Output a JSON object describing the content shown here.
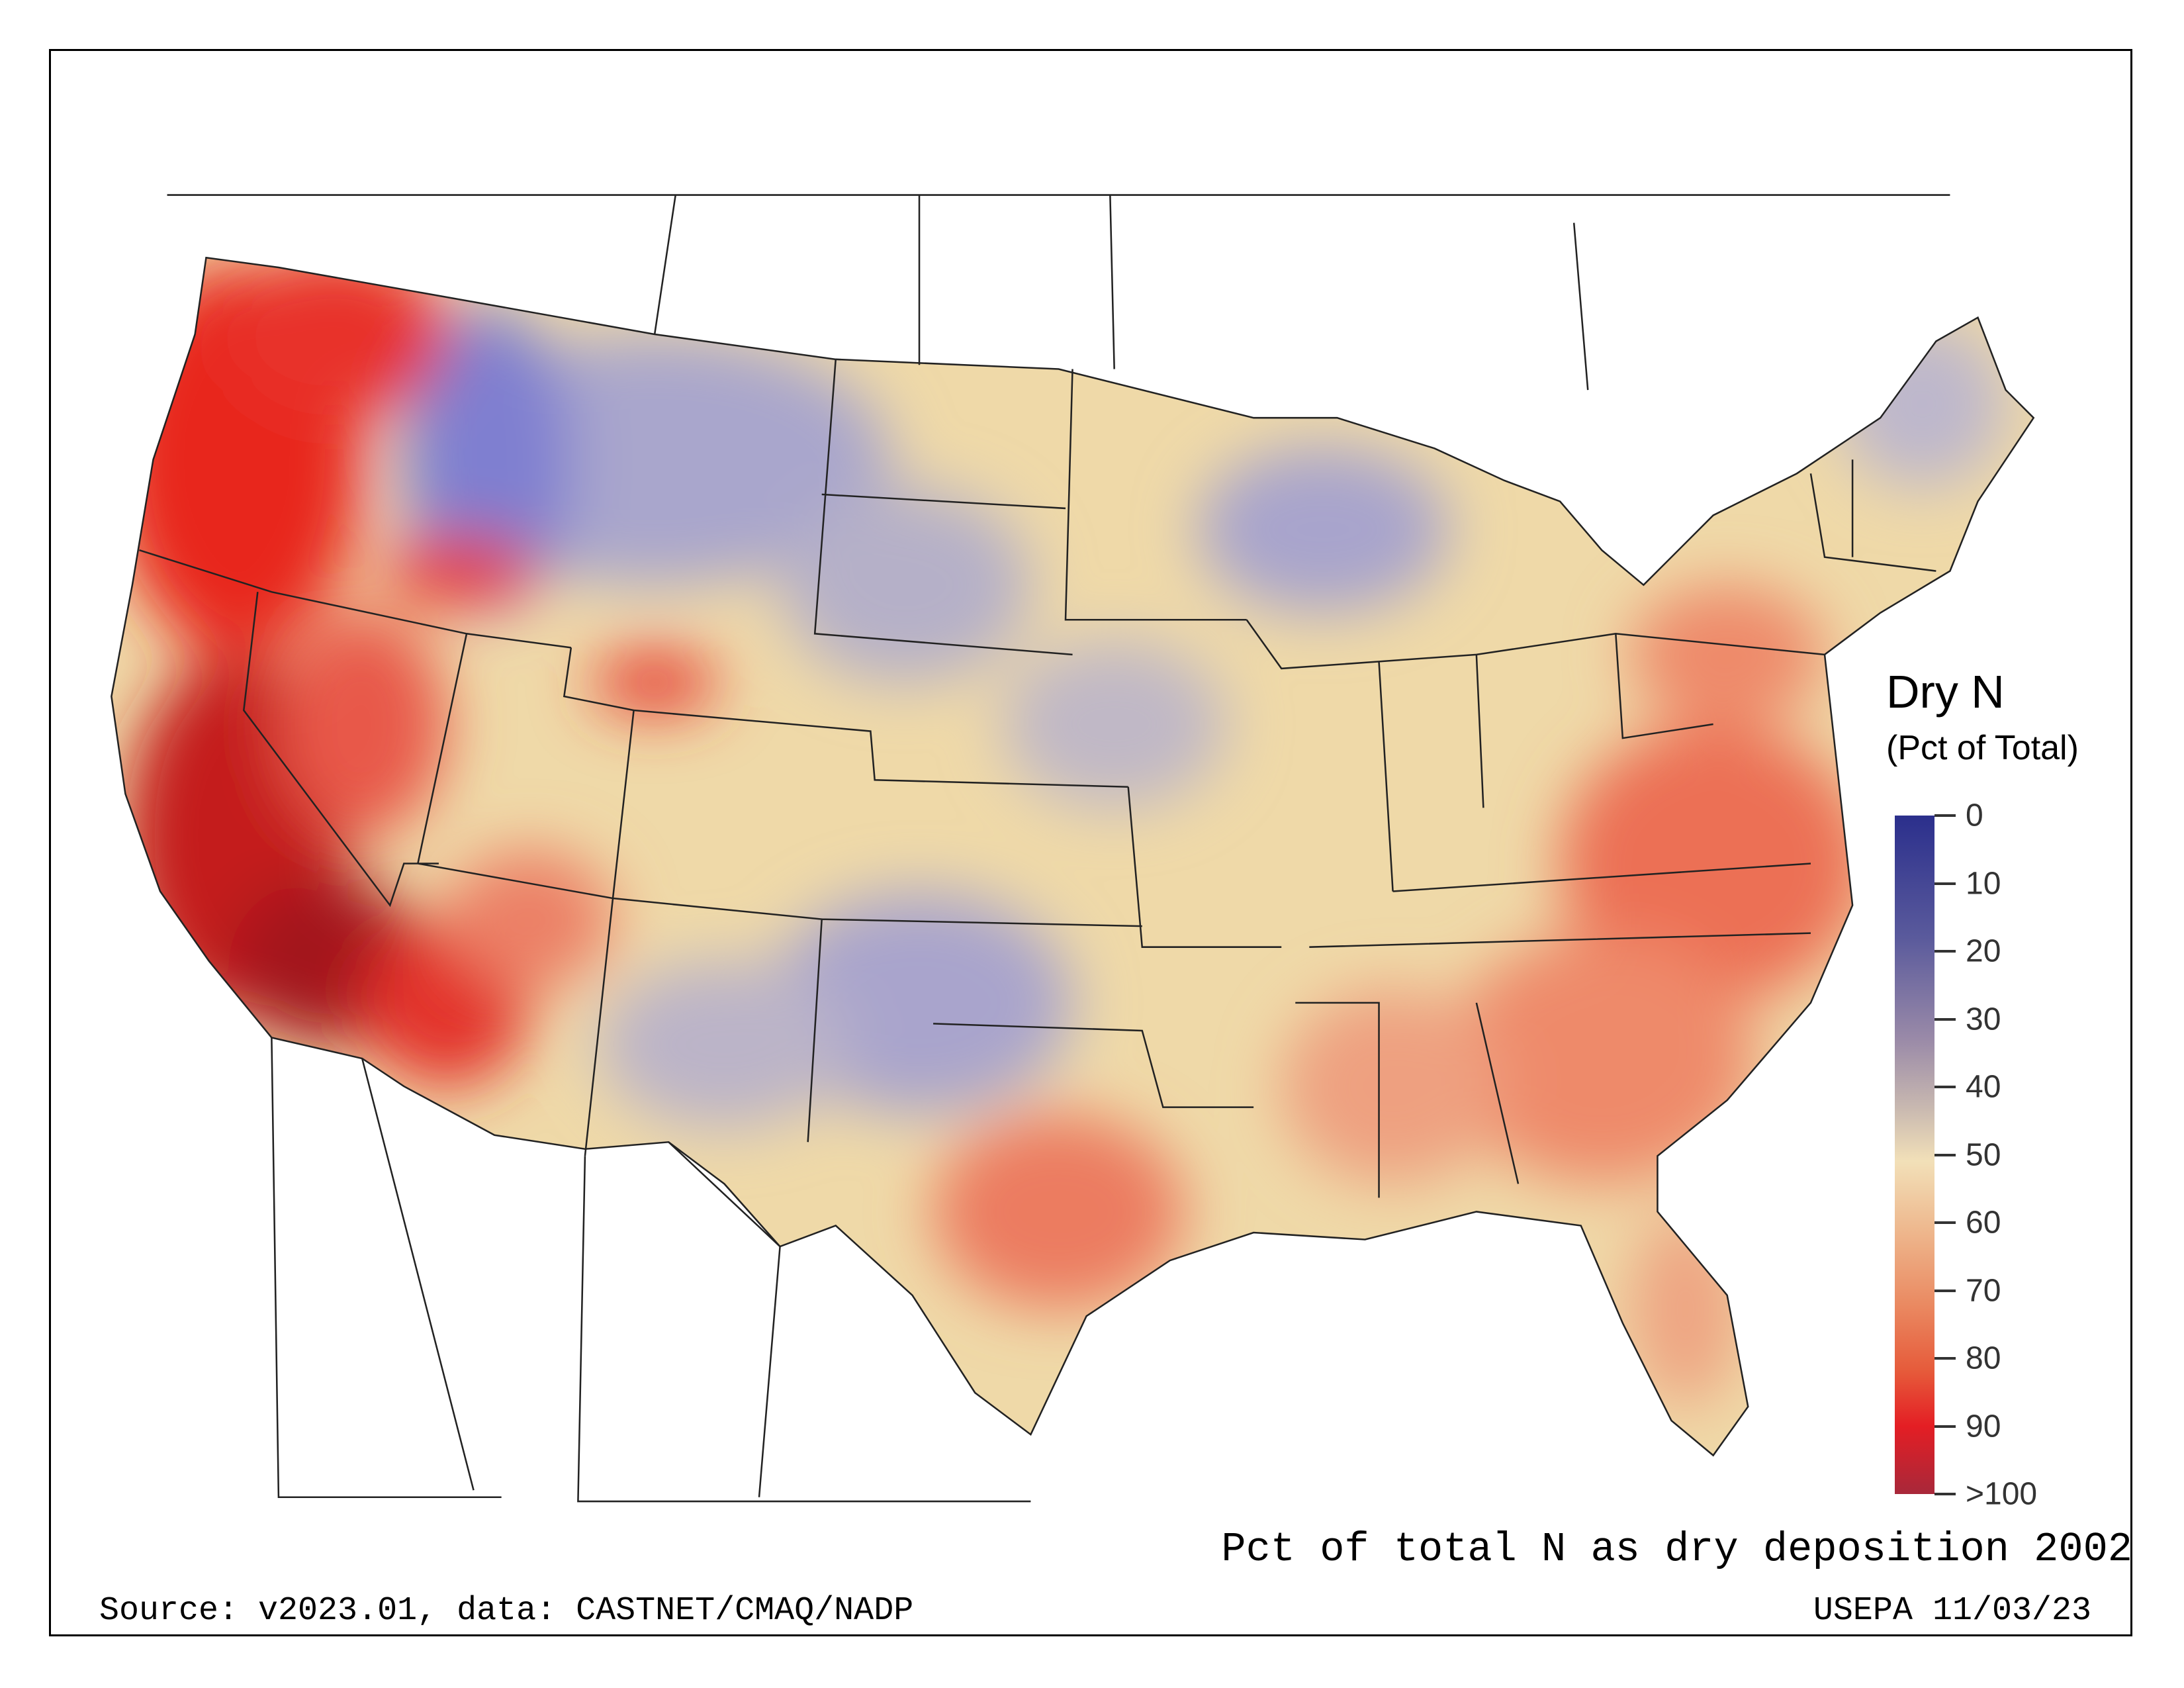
{
  "legend": {
    "title": "Dry N",
    "subtitle": "(Pct of Total)",
    "ticks": [
      "0",
      "10",
      "20",
      "30",
      "40",
      "50",
      "60",
      "70",
      "80",
      "90",
      ">100"
    ],
    "colors": {
      "low": "#2b2f8c",
      "mid": "#f2e0b8",
      "high": "#e41e24",
      "max": "#a8283a"
    }
  },
  "map_title": "Pct of total N as dry deposition 2002",
  "source": "Source: v2023.01, data: CASTNET/CMAQ/NADP",
  "stamp": "USEPA 11/03/23"
}
